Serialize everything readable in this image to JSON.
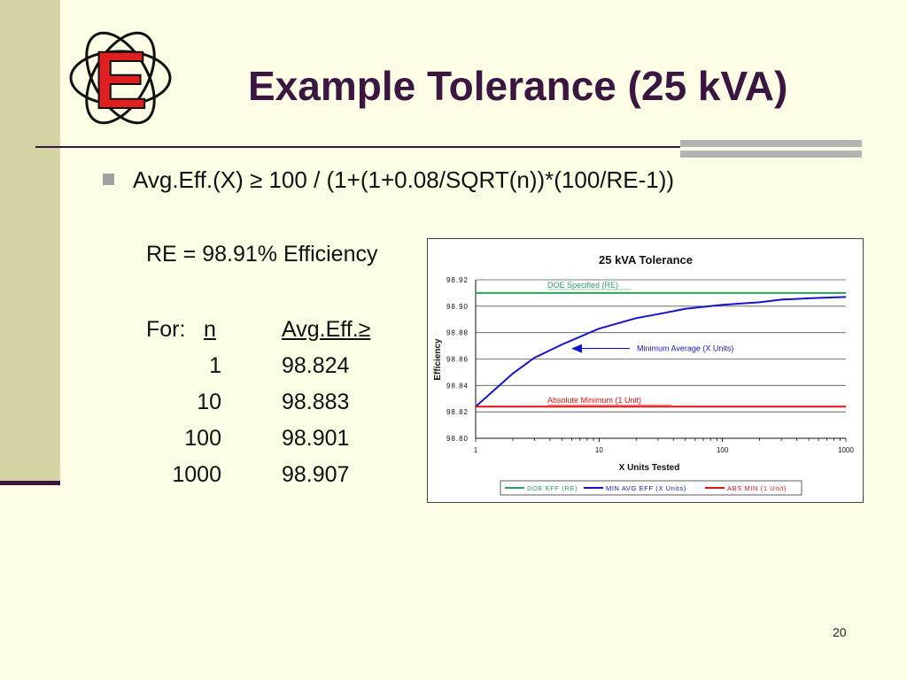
{
  "slide": {
    "title": "Example Tolerance (25 kVA)",
    "formula": "Avg.Eff.(X) ≥ 100 / (1+(1+0.08/SQRT(n))*(100/RE-1))",
    "re_line": "RE = 98.91% Efficiency",
    "table": {
      "for_label": "For:",
      "col_n": "n",
      "col_eff": "Avg.Eff.≥",
      "rows": [
        {
          "n": "1",
          "eff": "98.824"
        },
        {
          "n": "10",
          "eff": "98.883"
        },
        {
          "n": "100",
          "eff": "98.901"
        },
        {
          "n": "1000",
          "eff": "98.907"
        }
      ]
    },
    "page_number": "20",
    "logo": {
      "letter": "E",
      "letter_color": "#e02020",
      "ring_color": "#111111"
    }
  },
  "chart_data": {
    "type": "line",
    "title": "25 kVA Tolerance",
    "xlabel": "X Units Tested",
    "ylabel": "Efficiency",
    "x_scale": "log",
    "xlim": [
      1,
      1000
    ],
    "ylim": [
      98.8,
      98.92
    ],
    "x_ticks": [
      "1",
      "10",
      "100",
      "1000"
    ],
    "y_ticks": [
      "98.80",
      "98.82",
      "98.84",
      "98.86",
      "98.88",
      "98.90",
      "98.92"
    ],
    "grid": "horizontal",
    "legend_position": "bottom",
    "series": [
      {
        "name": "DOE EFF (RE)",
        "color": "#2ca05a",
        "x": [
          1,
          1000
        ],
        "y": [
          98.91,
          98.91
        ]
      },
      {
        "name": "MIN AVG EFF (X Units)",
        "color": "#1414c8",
        "x": [
          1,
          2,
          3,
          5,
          10,
          20,
          30,
          50,
          100,
          200,
          300,
          500,
          1000
        ],
        "y": [
          98.824,
          98.849,
          98.861,
          98.871,
          98.883,
          98.891,
          98.894,
          98.898,
          98.901,
          98.903,
          98.905,
          98.906,
          98.907
        ]
      },
      {
        "name": "ABS MIN (1 Unit)",
        "color": "#e01414",
        "x": [
          1,
          1000
        ],
        "y": [
          98.824,
          98.824
        ]
      }
    ],
    "annotations": [
      {
        "text": "DOE Specified (RE)",
        "color": "#2ca05a"
      },
      {
        "text": "Minimum Average (X Units)",
        "color": "#1414c8"
      },
      {
        "text": "Absolute Minimum (1 Unit)",
        "color": "#e01414"
      }
    ]
  }
}
